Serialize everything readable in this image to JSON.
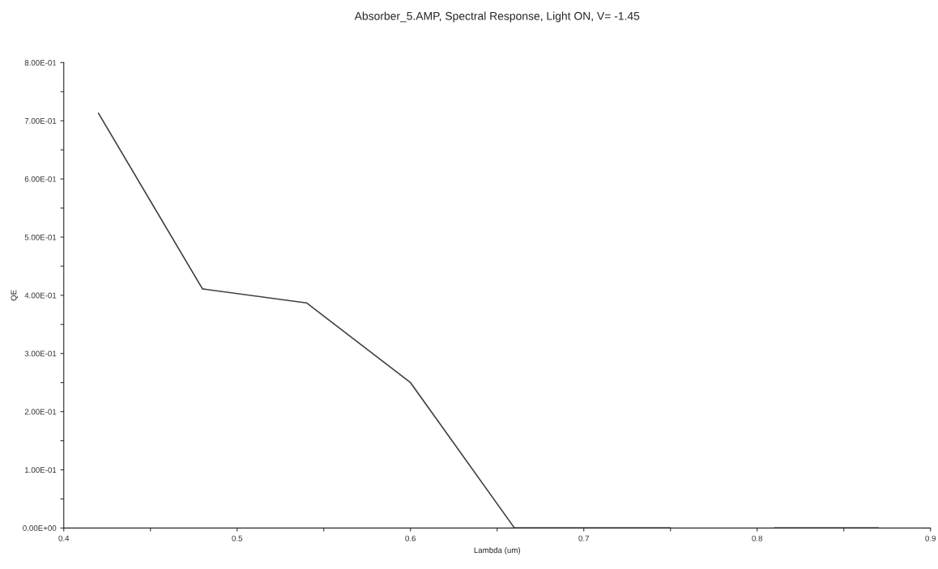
{
  "chart_data": {
    "type": "line",
    "title": "Absorber_5.AMP, Spectral Response, Light ON, V= -1.45",
    "xlabel": "Lambda (um)",
    "ylabel": "QE",
    "x": [
      0.42,
      0.48,
      0.54,
      0.6,
      0.66,
      0.75,
      0.78,
      0.81,
      0.87
    ],
    "series": [
      {
        "color": "#404040",
        "values": [
          0.713,
          0.411,
          0.387,
          0.25,
          0.0,
          0.0,
          null,
          0.0,
          0.0
        ]
      }
    ],
    "xlim": [
      0.4,
      0.9
    ],
    "xticks": [
      {
        "value": 0.4,
        "label": "0.4"
      },
      {
        "value": 0.45,
        "label": null
      },
      {
        "value": 0.5,
        "label": "0.5"
      },
      {
        "value": 0.55,
        "label": null
      },
      {
        "value": 0.6,
        "label": "0.6"
      },
      {
        "value": 0.65,
        "label": null
      },
      {
        "value": 0.7,
        "label": "0.7"
      },
      {
        "value": 0.75,
        "label": null
      },
      {
        "value": 0.8,
        "label": "0.8"
      },
      {
        "value": 0.85,
        "label": null
      },
      {
        "value": 0.9,
        "label": "0.9"
      }
    ],
    "ylim": [
      0,
      0.8
    ],
    "yticks": [
      {
        "value": 0,
        "label": "0.00E+00"
      },
      {
        "value": 0.05,
        "label": null
      },
      {
        "value": 0.1,
        "label": "1.00E-01"
      },
      {
        "value": 0.15,
        "label": null
      },
      {
        "value": 0.2,
        "label": "2.00E-01"
      },
      {
        "value": 0.25,
        "label": null
      },
      {
        "value": 0.3,
        "label": "3.00E-01"
      },
      {
        "value": 0.35,
        "label": null
      },
      {
        "value": 0.4,
        "label": "4.00E-01"
      },
      {
        "value": 0.45,
        "label": null
      },
      {
        "value": 0.5,
        "label": "5.00E-01"
      },
      {
        "value": 0.55,
        "label": null
      },
      {
        "value": 0.6,
        "label": "6.00E-01"
      },
      {
        "value": 0.65,
        "label": null
      },
      {
        "value": 0.7,
        "label": "7.00E-01"
      },
      {
        "value": 0.75,
        "label": null
      },
      {
        "value": 0.8,
        "label": "8.00E-01"
      }
    ],
    "grid": false,
    "legend": false,
    "marker": "none",
    "line_style": "solid"
  }
}
